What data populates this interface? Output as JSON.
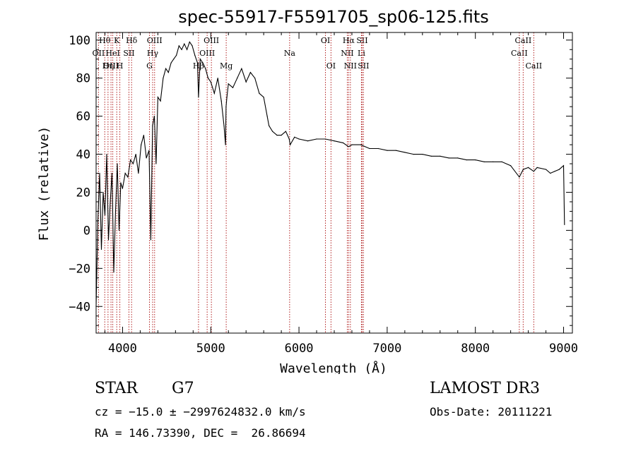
{
  "chart_data": {
    "type": "line",
    "title": "spec-55917-F5591705_sp06-125.fits",
    "xlabel": "Wavelength (Å)",
    "ylabel": "Flux (relative)",
    "xlim": [
      3700,
      9100
    ],
    "ylim": [
      -54,
      104
    ],
    "xticks": [
      4000,
      5000,
      6000,
      7000,
      8000,
      9000
    ],
    "xtick_labels": [
      "4000",
      "5000",
      "6000",
      "7000",
      "8000",
      "9000"
    ],
    "yticks": [
      -40,
      -20,
      0,
      20,
      40,
      60,
      80,
      100
    ],
    "ytick_labels": [
      "−40",
      "−20",
      "0",
      "20",
      "40",
      "60",
      "80",
      "100"
    ],
    "series": [
      {
        "name": "spectrum",
        "color": "#000000",
        "x": [
          3700,
          3720,
          3740,
          3760,
          3780,
          3800,
          3820,
          3840,
          3860,
          3880,
          3900,
          3920,
          3940,
          3960,
          3980,
          4000,
          4030,
          4060,
          4090,
          4120,
          4150,
          4180,
          4210,
          4240,
          4270,
          4300,
          4320,
          4340,
          4360,
          4380,
          4400,
          4430,
          4460,
          4490,
          4520,
          4550,
          4580,
          4610,
          4640,
          4670,
          4700,
          4730,
          4760,
          4790,
          4820,
          4850,
          4861,
          4880,
          4910,
          4940,
          4970,
          5000,
          5040,
          5080,
          5120,
          5150,
          5167,
          5173,
          5183,
          5200,
          5250,
          5300,
          5350,
          5400,
          5450,
          5500,
          5550,
          5600,
          5640,
          5660,
          5700,
          5750,
          5800,
          5850,
          5890,
          5900,
          5950,
          6000,
          6100,
          6200,
          6300,
          6400,
          6500,
          6563,
          6600,
          6700,
          6800,
          6900,
          7000,
          7100,
          7200,
          7300,
          7400,
          7500,
          7600,
          7700,
          7800,
          7900,
          8000,
          8100,
          8200,
          8300,
          8400,
          8498,
          8542,
          8600,
          8662,
          8700,
          8800,
          8850,
          8900,
          8950,
          9000,
          9010
        ],
        "y": [
          -40,
          5,
          30,
          -10,
          20,
          8,
          40,
          -5,
          15,
          30,
          -22,
          10,
          35,
          0,
          25,
          22,
          30,
          28,
          37,
          35,
          40,
          30,
          45,
          50,
          38,
          42,
          -5,
          55,
          60,
          35,
          70,
          68,
          80,
          85,
          83,
          88,
          90,
          92,
          97,
          95,
          98,
          95,
          99,
          97,
          92,
          88,
          70,
          90,
          88,
          85,
          80,
          78,
          72,
          80,
          68,
          55,
          45,
          65,
          70,
          77,
          75,
          80,
          85,
          78,
          83,
          80,
          72,
          70,
          60,
          55,
          52,
          50,
          50,
          52,
          48,
          45,
          49,
          48,
          47,
          48,
          48,
          47,
          46,
          44,
          45,
          45,
          43,
          43,
          42,
          42,
          41,
          40,
          40,
          39,
          39,
          38,
          38,
          37,
          37,
          36,
          36,
          36,
          34,
          28,
          32,
          33,
          31,
          33,
          32,
          30,
          31,
          32,
          34,
          3
        ]
      }
    ],
    "lines": {
      "color": "#b22222",
      "items": [
        {
          "name": "Hθ",
          "wavelength": 3798,
          "row": 0
        },
        {
          "name": "OII",
          "wavelength": 3727,
          "row": 1
        },
        {
          "name": "OIII",
          "wavelength": 3869,
          "row": 2
        },
        {
          "name": "Hη",
          "wavelength": 3835,
          "row": 2
        },
        {
          "name": "HeI",
          "wavelength": 3889,
          "row": 1
        },
        {
          "name": "K",
          "wavelength": 3934,
          "row": 0
        },
        {
          "name": "H",
          "wavelength": 3969,
          "row": 2
        },
        {
          "name": "SII",
          "wavelength": 4072,
          "row": 1
        },
        {
          "name": "Hδ",
          "wavelength": 4102,
          "row": 0
        },
        {
          "name": "G",
          "wavelength": 4305,
          "row": 2
        },
        {
          "name": "Hγ",
          "wavelength": 4341,
          "row": 1
        },
        {
          "name": "OIII",
          "wavelength": 4363,
          "row": 0
        },
        {
          "name": "Hβ",
          "wavelength": 4861,
          "row": 2
        },
        {
          "name": "OIII",
          "wavelength": 4959,
          "row": 1
        },
        {
          "name": "OIII",
          "wavelength": 5007,
          "row": 0
        },
        {
          "name": "Mg",
          "wavelength": 5175,
          "row": 2
        },
        {
          "name": "Na",
          "wavelength": 5894,
          "row": 1
        },
        {
          "name": "OI",
          "wavelength": 6300,
          "row": 0
        },
        {
          "name": "OI",
          "wavelength": 6363,
          "row": 2
        },
        {
          "name": "NII",
          "wavelength": 6548,
          "row": 1
        },
        {
          "name": "Hα",
          "wavelength": 6563,
          "row": 0
        },
        {
          "name": "NII",
          "wavelength": 6583,
          "row": 2
        },
        {
          "name": "Li",
          "wavelength": 6708,
          "row": 1
        },
        {
          "name": "SII",
          "wavelength": 6716,
          "row": 0
        },
        {
          "name": "SII",
          "wavelength": 6731,
          "row": 2
        },
        {
          "name": "CaII",
          "wavelength": 8498,
          "row": 1
        },
        {
          "name": "CaII",
          "wavelength": 8542,
          "row": 0
        },
        {
          "name": "CaII",
          "wavelength": 8662,
          "row": 2
        }
      ]
    }
  },
  "footer": {
    "class_label": "STAR",
    "subclass": "G7",
    "survey": "LAMOST DR3",
    "redshift": "cz = −15.0 ± −2997624832.0 km/s",
    "obs_date": "Obs-Date: 20111221",
    "coords": "RA = 146.73390, DEC =  26.86694"
  }
}
